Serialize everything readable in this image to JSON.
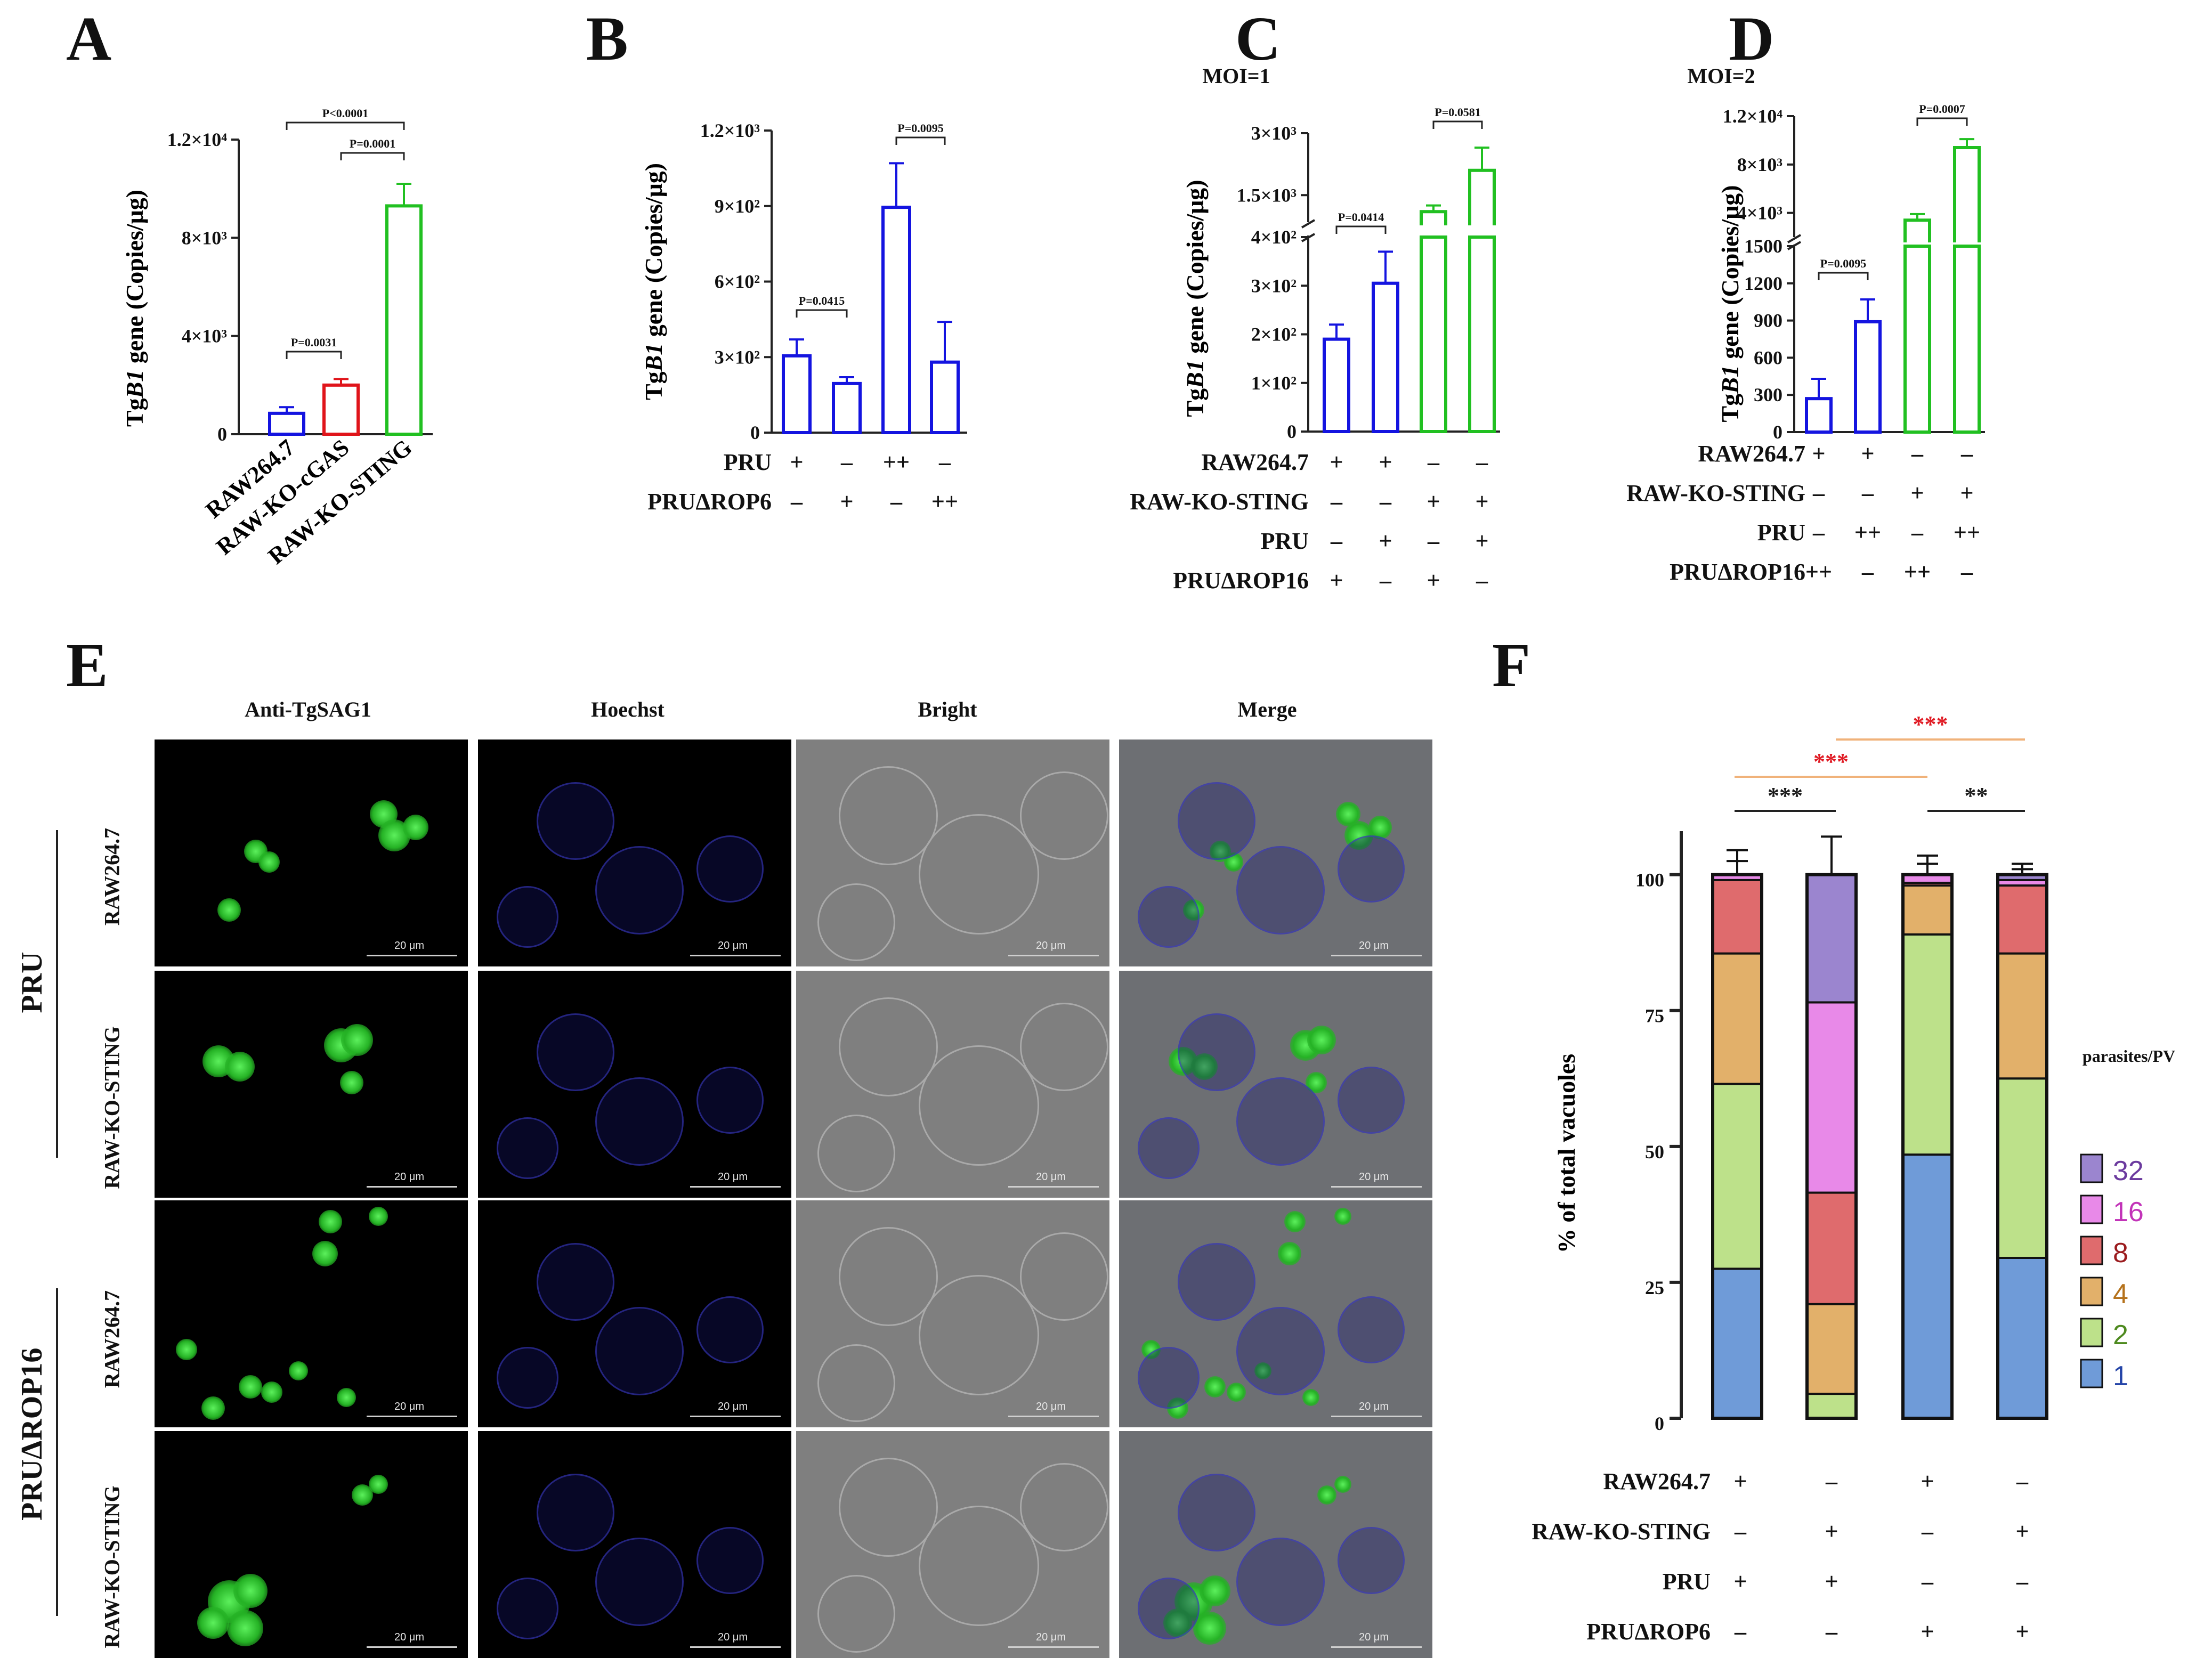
{
  "panels": {
    "A": "A",
    "B": "B",
    "C": "C",
    "D": "D",
    "E": "E",
    "F": "F"
  },
  "y_title_pre": "Tg",
  "y_title_gene": "B1",
  "y_title_post": " gene (Copies/μg)",
  "chart_data": [
    {
      "panel": "A",
      "type": "bar",
      "ylabel": "TgB1 gene (Copies/μg)",
      "categories": [
        "RAW264.7",
        "RAW-KO-cGAS",
        "RAW-KO-STING"
      ],
      "values": [
        850,
        2000,
        9300
      ],
      "errors": [
        250,
        250,
        900
      ],
      "colors": [
        "#1414e0",
        "#e0141a",
        "#21c021"
      ],
      "ylim": [
        0,
        12000
      ],
      "ytick_labels": [
        "0",
        "4×10³",
        "8×10³",
        "1.2×10⁴"
      ],
      "annotations": [
        {
          "text": "P=0.0031",
          "from": 0,
          "to": 1
        },
        {
          "text": "P=0.0001",
          "from": 1,
          "to": 2
        },
        {
          "text": "P<0.0001",
          "from": 0,
          "to": 2
        }
      ]
    },
    {
      "panel": "B",
      "type": "bar",
      "ylabel": "TgB1 gene (Copies/μg)",
      "values": [
        305,
        195,
        895,
        280
      ],
      "errors": [
        65,
        25,
        175,
        160
      ],
      "colors": [
        "#1414e0",
        "#1414e0",
        "#1414e0",
        "#1414e0"
      ],
      "ylim": [
        0,
        1200
      ],
      "ytick_labels": [
        "0",
        "3×10²",
        "6×10²",
        "9×10²",
        "1.2×10³"
      ],
      "conditions": [
        {
          "label": "PRU",
          "signs": [
            "+",
            "–",
            "++",
            "–"
          ]
        },
        {
          "label": "PRUΔROP6",
          "signs": [
            "–",
            "+",
            "–",
            "++"
          ]
        }
      ],
      "annotations": [
        {
          "text": "P=0.0415",
          "from": 0,
          "to": 1
        },
        {
          "text": "P=0.0095",
          "from": 2,
          "to": 3
        }
      ]
    },
    {
      "panel": "C",
      "type": "bar",
      "subtitle": "MOI=1",
      "ylabel": "TgB1 gene (Copies/μg)",
      "axis_break": true,
      "values": [
        190,
        305,
        1100,
        2100
      ],
      "errors": [
        30,
        65,
        150,
        550
      ],
      "colors": [
        "#1414e0",
        "#1414e0",
        "#21c021",
        "#21c021"
      ],
      "ytick_labels_lower": [
        "0",
        "1×10²",
        "2×10²",
        "3×10²",
        "4×10²"
      ],
      "ytick_labels_upper": [
        "1.5×10³",
        "3×10³"
      ],
      "conditions": [
        {
          "label": "RAW264.7",
          "signs": [
            "+",
            "+",
            "–",
            "–"
          ]
        },
        {
          "label": "RAW-KO-STING",
          "signs": [
            "–",
            "–",
            "+",
            "+"
          ]
        },
        {
          "label": "PRU",
          "signs": [
            "–",
            "+",
            "–",
            "+"
          ]
        },
        {
          "label": "PRUΔROP16",
          "signs": [
            "+",
            "–",
            "+",
            "–"
          ]
        }
      ],
      "annotations": [
        {
          "text": "P=0.0414",
          "from": 0,
          "to": 1
        },
        {
          "text": "P=0.0581",
          "from": 2,
          "to": 3
        }
      ]
    },
    {
      "panel": "D",
      "type": "bar",
      "subtitle": "MOI=2",
      "ylabel": "TgB1 gene (Copies/μg)",
      "axis_break": true,
      "values": [
        270,
        890,
        3400,
        9400
      ],
      "errors": [
        160,
        180,
        500,
        700
      ],
      "colors": [
        "#1414e0",
        "#1414e0",
        "#21c021",
        "#21c021"
      ],
      "ytick_labels_lower": [
        "0",
        "300",
        "600",
        "900",
        "1200",
        "1500"
      ],
      "ytick_labels_upper": [
        "4×10³",
        "8×10³",
        "1.2×10⁴"
      ],
      "conditions": [
        {
          "label": "RAW264.7",
          "signs": [
            "+",
            "+",
            "–",
            "–"
          ]
        },
        {
          "label": "RAW-KO-STING",
          "signs": [
            "–",
            "–",
            "+",
            "+"
          ]
        },
        {
          "label": "PRU",
          "signs": [
            "–",
            "++",
            "–",
            "++"
          ]
        },
        {
          "label": "PRUΔROP16",
          "signs": [
            "++",
            "–",
            "++",
            "–"
          ]
        }
      ],
      "annotations": [
        {
          "text": "P=0.0095",
          "from": 0,
          "to": 1
        },
        {
          "text": "P=0.0007",
          "from": 2,
          "to": 3
        }
      ]
    },
    {
      "panel": "F",
      "type": "bar",
      "stacked": true,
      "ylabel": "% of  total vacuoles",
      "ylim": [
        0,
        100
      ],
      "ytick_labels": [
        "0",
        "25",
        "50",
        "75",
        "100"
      ],
      "legend_title": "parasites/PV",
      "legend_position": "right",
      "series": [
        {
          "name": "1",
          "color": "#6f9bd8",
          "values": [
            27.5,
            0,
            48.5,
            29.5
          ],
          "errors": [
            0,
            0,
            3.5,
            2.5
          ]
        },
        {
          "name": "2",
          "color": "#bde18a",
          "values": [
            34,
            4.5,
            40.5,
            33
          ],
          "errors": [
            4,
            0,
            0,
            4.5
          ]
        },
        {
          "name": "4",
          "color": "#e2b06a",
          "values": [
            24,
            16.5,
            9,
            23
          ],
          "errors": [
            2,
            5.5,
            5.5,
            0
          ]
        },
        {
          "name": "8",
          "color": "#df6b6d",
          "values": [
            13.5,
            20.5,
            0.5,
            12.5
          ],
          "errors": [
            5.5,
            3.5,
            0,
            3
          ]
        },
        {
          "name": "16",
          "color": "#e889e8",
          "values": [
            1,
            35,
            1.5,
            1
          ],
          "errors": [
            0,
            3.5,
            0,
            0
          ]
        },
        {
          "name": "32",
          "color": "#9b85cf",
          "values": [
            0,
            23.5,
            0,
            1
          ],
          "errors": [
            2.5,
            7,
            2,
            2
          ]
        }
      ],
      "legend_colors": {
        "1": "#2545a8",
        "2": "#4e8a1f",
        "4": "#b5721c",
        "8": "#9b1b1e",
        "16": "#c233b8",
        "32": "#6b3a9e"
      },
      "conditions": [
        {
          "label": "RAW264.7",
          "signs": [
            "+",
            "–",
            "+",
            "–"
          ]
        },
        {
          "label": "RAW-KO-STING",
          "signs": [
            "–",
            "+",
            "–",
            "+"
          ]
        },
        {
          "label": "PRU",
          "signs": [
            "+",
            "+",
            "–",
            "–"
          ]
        },
        {
          "label": "PRUΔROP6",
          "signs": [
            "–",
            "–",
            "+",
            "+"
          ]
        }
      ],
      "significance": [
        {
          "text": "***",
          "from": 0,
          "to": 1,
          "color": "#1a1a1a"
        },
        {
          "text": "**",
          "from": 2,
          "to": 3,
          "color": "#1a1a1a"
        },
        {
          "text": "***",
          "from": 0,
          "to": 2,
          "color": "#e01b24"
        },
        {
          "text": "***",
          "from": 1,
          "to": 3,
          "color": "#e01b24"
        }
      ]
    }
  ],
  "microscopy": {
    "columns": [
      "Anti-TgSAG1",
      "Hoechst",
      "Bright",
      "Merge"
    ],
    "groups": [
      "PRU",
      "PRUΔROP16"
    ],
    "rows": [
      "RAW264.7",
      "RAW-KO-STING",
      "RAW264.7",
      "RAW-KO-STING"
    ],
    "scale_bar": "20 μm"
  }
}
